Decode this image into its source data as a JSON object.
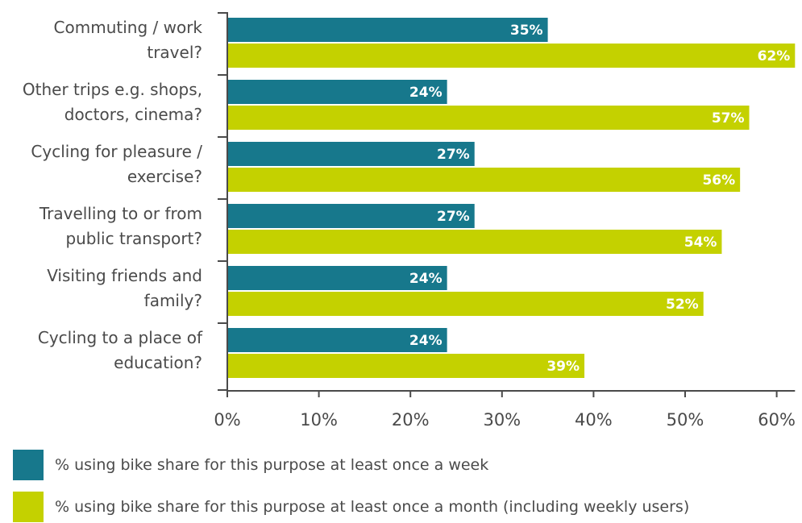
{
  "chart_data": {
    "type": "bar",
    "orientation": "horizontal",
    "categories": [
      [
        "Commuting / work",
        "travel?"
      ],
      [
        "Other trips e.g. shops,",
        "doctors, cinema?"
      ],
      [
        "Cycling for pleasure /",
        "exercise?"
      ],
      [
        "Travelling to or from",
        "public transport?"
      ],
      [
        "Visiting friends and",
        "family?"
      ],
      [
        "Cycling to a place of",
        "education?"
      ]
    ],
    "series": [
      {
        "name": "% using bike share for this purpose at least once a week",
        "color": "#17788c",
        "values": [
          35,
          24,
          27,
          27,
          24,
          24
        ],
        "labels": [
          "35%",
          "24%",
          "27%",
          "27%",
          "24%",
          "24%"
        ]
      },
      {
        "name": "% using bike share for this purpose at least once a month (including weekly users)",
        "color": "#c4d100",
        "values": [
          62,
          57,
          56,
          54,
          52,
          39
        ],
        "labels": [
          "62%",
          "57%",
          "56%",
          "54%",
          "52%",
          "39%"
        ]
      }
    ],
    "xlim": [
      0,
      62
    ],
    "xticks": [
      0,
      10,
      20,
      30,
      40,
      50,
      60
    ],
    "xtick_labels": [
      "0%",
      "10%",
      "20%",
      "30%",
      "40%",
      "50%",
      "60%"
    ],
    "legend_position": "bottom",
    "grid": false
  }
}
